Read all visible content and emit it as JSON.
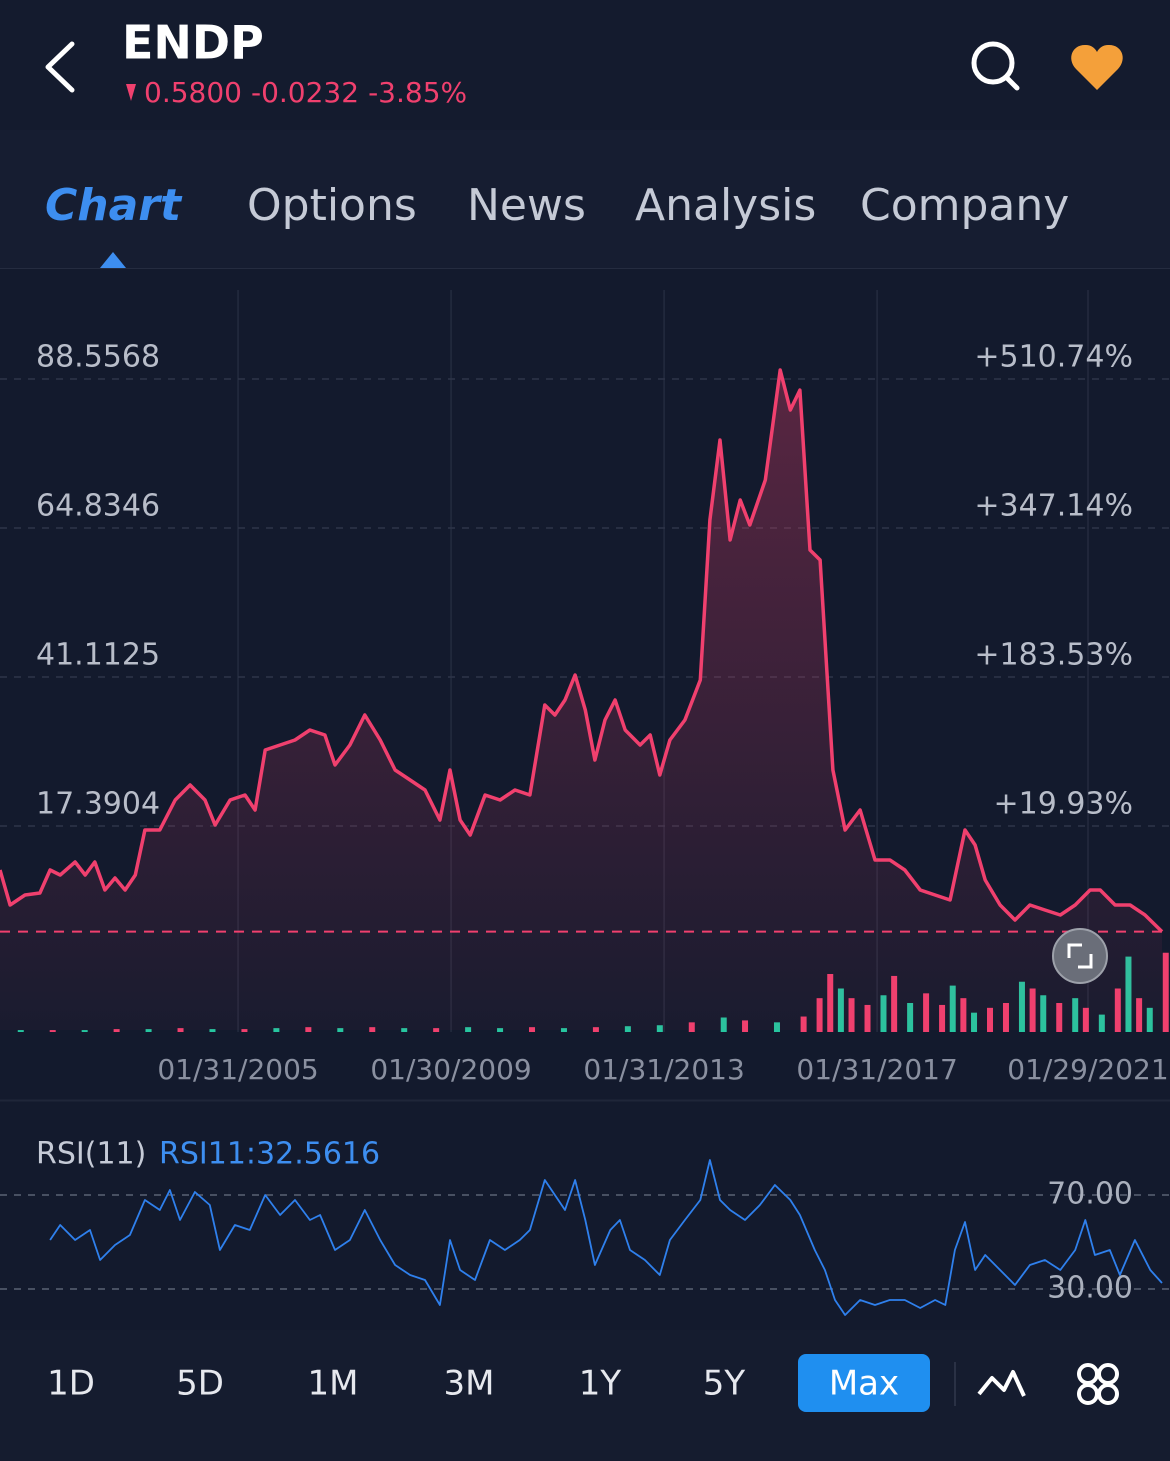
{
  "header": {
    "symbol": "ENDP",
    "price": "0.5800",
    "change": "-0.0232",
    "change_pct": "-3.85%"
  },
  "tabs": [
    "Chart",
    "Options",
    "News",
    "Analysis",
    "Company"
  ],
  "active_tab": 0,
  "ranges": [
    "1D",
    "5D",
    "1M",
    "3M",
    "1Y",
    "5Y",
    "Max"
  ],
  "active_range": 6,
  "chart_data": [
    {
      "type": "line",
      "area": true,
      "xlim": [
        2000.61,
        2022.58
      ],
      "ylim": [
        -15.09,
        102.73
      ],
      "yticks": [
        88.5568,
        64.8346,
        41.1125,
        17.3904
      ],
      "y2lim": [
        -204.07,
        608.48
      ],
      "y2ticks": [
        {
          "value": 510.74,
          "label": "+510.74%"
        },
        {
          "value": 347.14,
          "label": "+347.14%"
        },
        {
          "value": 183.53,
          "label": "+183.53%"
        },
        {
          "value": 19.93,
          "label": "+19.93%"
        }
      ],
      "xticks": [
        {
          "value": 2005.08,
          "label": "01/31/2005"
        },
        {
          "value": 2009.08,
          "label": "01/30/2009"
        },
        {
          "value": 2013.08,
          "label": "01/31/2013"
        },
        {
          "value": 2017.08,
          "label": "01/31/2017"
        },
        {
          "value": 2021.04,
          "label": "01/29/2021"
        }
      ],
      "grid": true,
      "last_price_line": true,
      "series": [
        {
          "color": "#f0406e",
          "x": [
            2000.61,
            2000.8,
            2001.08,
            2001.36,
            2001.55,
            2001.74,
            2002.02,
            2002.21,
            2002.39,
            2002.58,
            2002.77,
            2002.96,
            2003.15,
            2003.33,
            2003.61,
            2003.9,
            2004.18,
            2004.46,
            2004.65,
            2004.93,
            2005.21,
            2005.4,
            2005.59,
            2005.87,
            2006.15,
            2006.43,
            2006.71,
            2006.9,
            2007.18,
            2007.46,
            2007.75,
            2008.03,
            2008.31,
            2008.59,
            2008.87,
            2009.06,
            2009.25,
            2009.44,
            2009.72,
            2010.0,
            2010.28,
            2010.56,
            2010.84,
            2011.03,
            2011.22,
            2011.41,
            2011.6,
            2011.78,
            2011.97,
            2012.16,
            2012.35,
            2012.63,
            2012.82,
            2013.0,
            2013.19,
            2013.47,
            2013.76,
            2013.94,
            2014.13,
            2014.32,
            2014.51,
            2014.69,
            2014.98,
            2015.26,
            2015.45,
            2015.63,
            2015.82,
            2016.01,
            2016.25,
            2016.48,
            2016.76,
            2017.04,
            2017.32,
            2017.6,
            2017.89,
            2018.17,
            2018.45,
            2018.73,
            2018.92,
            2019.11,
            2019.39,
            2019.67,
            2019.95,
            2020.23,
            2020.52,
            2020.8,
            2021.08,
            2021.27,
            2021.55,
            2021.83,
            2022.11,
            2022.43
          ],
          "values": [
            10.39,
            4.81,
            6.41,
            6.72,
            10.39,
            9.59,
            11.66,
            9.59,
            11.66,
            7.2,
            9.11,
            7.2,
            9.59,
            16.75,
            16.75,
            21.53,
            23.92,
            21.53,
            17.55,
            21.53,
            22.33,
            19.94,
            29.49,
            30.29,
            31.08,
            32.67,
            31.88,
            27.1,
            30.29,
            35.06,
            31.08,
            26.31,
            24.71,
            23.12,
            18.35,
            26.31,
            18.35,
            15.96,
            22.33,
            21.53,
            23.12,
            22.33,
            36.65,
            35.06,
            37.45,
            41.43,
            35.86,
            27.9,
            34.27,
            37.45,
            32.67,
            30.29,
            31.88,
            25.51,
            31.08,
            34.27,
            40.63,
            66.11,
            78.84,
            62.92,
            69.29,
            65.31,
            72.47,
            89.99,
            83.62,
            86.8,
            61.33,
            59.74,
            26.31,
            16.75,
            19.94,
            11.98,
            11.98,
            10.39,
            7.2,
            6.41,
            5.61,
            16.75,
            14.37,
            8.79,
            4.81,
            2.43,
            4.81,
            4.02,
            3.22,
            4.81,
            7.2,
            7.2,
            4.81,
            4.81,
            3.22,
            0.58
          ]
        }
      ],
      "volume": {
        "up_color": "#26c6a0",
        "down_color": "#f0406e",
        "vlim": [
          0,
          90
        ],
        "x": [
          2001.0,
          2001.6,
          2002.2,
          2002.8,
          2003.4,
          2004.0,
          2004.6,
          2005.2,
          2005.8,
          2006.4,
          2007.0,
          2007.6,
          2008.2,
          2008.8,
          2009.4,
          2010.0,
          2010.6,
          2011.2,
          2011.8,
          2012.4,
          2013.0,
          2013.6,
          2014.2,
          2014.6,
          2015.2,
          2015.7,
          2016.0,
          2016.2,
          2016.4,
          2016.6,
          2016.9,
          2017.2,
          2017.4,
          2017.7,
          2018.0,
          2018.3,
          2018.5,
          2018.7,
          2018.9,
          2019.2,
          2019.5,
          2019.8,
          2020.0,
          2020.2,
          2020.5,
          2020.8,
          2021.0,
          2021.3,
          2021.6,
          2021.8,
          2022.0,
          2022.2,
          2022.5
        ],
        "values": [
          2,
          2,
          2,
          3,
          3,
          4,
          3,
          3,
          4,
          5,
          4,
          5,
          4,
          4,
          5,
          4,
          5,
          4,
          5,
          6,
          7,
          10,
          15,
          12,
          10,
          16,
          35,
          60,
          45,
          35,
          28,
          38,
          58,
          30,
          40,
          28,
          48,
          35,
          20,
          25,
          30,
          52,
          45,
          38,
          30,
          35,
          25,
          18,
          45,
          78,
          35,
          25,
          82
        ],
        "up": [
          true,
          false,
          true,
          false,
          true,
          false,
          true,
          false,
          true,
          false,
          true,
          false,
          true,
          false,
          true,
          true,
          false,
          true,
          false,
          true,
          true,
          false,
          true,
          false,
          true,
          false,
          false,
          false,
          true,
          false,
          false,
          true,
          false,
          true,
          false,
          false,
          true,
          false,
          true,
          false,
          false,
          true,
          false,
          true,
          false,
          true,
          false,
          true,
          false,
          true,
          false,
          true,
          false
        ]
      }
    },
    {
      "type": "line",
      "title": "RSI(11)",
      "readout": "RSI11:32.5616",
      "xlim": [
        2000.61,
        2022.58
      ],
      "ylim": [
        16.81,
        89.15
      ],
      "yticks": [
        {
          "value": 70,
          "label": "70.00"
        },
        {
          "value": 30,
          "label": "30.00"
        }
      ],
      "grid": true,
      "series": [
        {
          "color": "#2f80ed",
          "x": [
            2001.55,
            2001.74,
            2002.02,
            2002.3,
            2002.49,
            2002.77,
            2003.05,
            2003.33,
            2003.61,
            2003.8,
            2003.99,
            2004.27,
            2004.55,
            2004.74,
            2005.02,
            2005.3,
            2005.59,
            2005.87,
            2006.15,
            2006.43,
            2006.62,
            2006.9,
            2007.18,
            2007.46,
            2007.75,
            2008.03,
            2008.31,
            2008.59,
            2008.87,
            2009.06,
            2009.25,
            2009.53,
            2009.81,
            2010.09,
            2010.37,
            2010.56,
            2010.84,
            2011.03,
            2011.22,
            2011.41,
            2011.6,
            2011.78,
            2012.07,
            2012.25,
            2012.44,
            2012.72,
            2013.0,
            2013.19,
            2013.47,
            2013.76,
            2013.94,
            2014.13,
            2014.32,
            2014.6,
            2014.88,
            2015.16,
            2015.45,
            2015.63,
            2015.91,
            2016.1,
            2016.29,
            2016.48,
            2016.76,
            2017.04,
            2017.32,
            2017.6,
            2017.89,
            2018.17,
            2018.36,
            2018.54,
            2018.73,
            2018.92,
            2019.11,
            2019.39,
            2019.67,
            2019.95,
            2020.23,
            2020.52,
            2020.8,
            2020.99,
            2021.17,
            2021.45,
            2021.64,
            2021.92,
            2022.21,
            2022.43
          ],
          "values": [
            50.85,
            57.23,
            50.85,
            55.11,
            42.34,
            48.72,
            52.98,
            67.87,
            63.62,
            72.13,
            59.36,
            71.28,
            65.74,
            46.6,
            57.23,
            55.11,
            70.0,
            61.49,
            67.87,
            59.36,
            61.49,
            46.6,
            50.85,
            63.62,
            50.85,
            40.21,
            35.96,
            33.83,
            23.19,
            50.85,
            38.09,
            33.83,
            50.85,
            46.6,
            50.85,
            55.11,
            76.38,
            70.0,
            63.62,
            76.38,
            59.36,
            40.21,
            55.11,
            59.36,
            46.6,
            42.34,
            35.96,
            50.85,
            59.36,
            67.87,
            84.89,
            67.87,
            63.62,
            59.36,
            65.74,
            74.26,
            67.87,
            61.49,
            46.6,
            38.09,
            25.32,
            18.94,
            25.32,
            23.19,
            25.32,
            25.32,
            21.91,
            25.32,
            23.19,
            46.6,
            58.51,
            38.09,
            44.47,
            38.09,
            31.7,
            40.21,
            42.34,
            38.09,
            46.6,
            59.36,
            44.47,
            46.6,
            35.96,
            50.85,
            38.09,
            32.5616
          ]
        }
      ]
    }
  ]
}
